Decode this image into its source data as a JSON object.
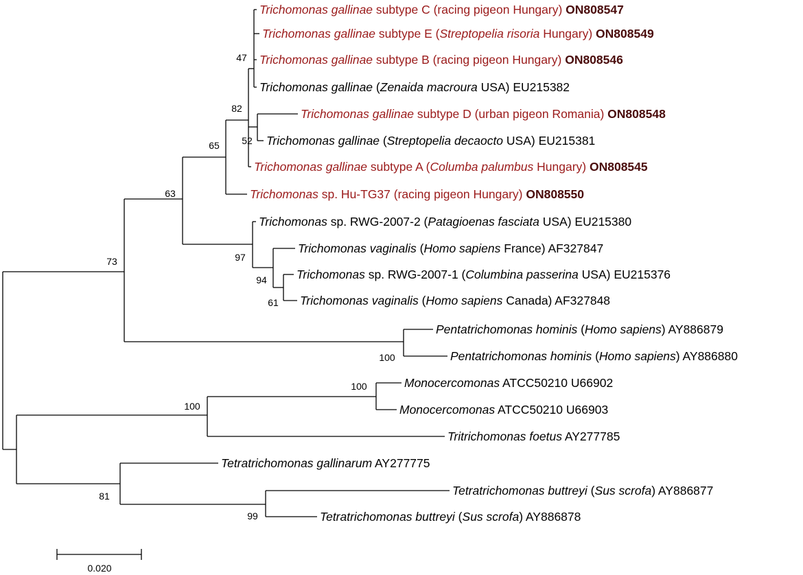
{
  "leaves": [
    {
      "parts": [
        "Trichomonas gallinae",
        " subtype C (racing pigeon Hungary) ",
        "ON808547"
      ]
    },
    {
      "parts": [
        "Trichomonas gallinae",
        " subtype E (",
        "Streptopelia risoria",
        " Hungary) ",
        "ON808549"
      ]
    },
    {
      "parts": [
        "Trichomonas gallinae",
        " subtype B (racing pigeon Hungary) ",
        "ON808546"
      ]
    },
    {
      "parts": [
        "Trichomonas gallinae",
        " (",
        "Zenaida macroura",
        " USA) EU215382"
      ]
    },
    {
      "parts": [
        "Trichomonas gallinae",
        " subtype D (urban pigeon Romania) ",
        "ON808548"
      ]
    },
    {
      "parts": [
        "Trichomonas gallinae",
        " (",
        "Streptopelia decaocto",
        " USA) EU215381"
      ]
    },
    {
      "parts": [
        "Trichomonas gallinae",
        " subtype A (",
        "Columba palumbus",
        " Hungary) ",
        "ON808545"
      ]
    },
    {
      "parts": [
        "Trichomonas",
        " sp. Hu-TG37 (racing pigeon Hungary) ",
        "ON808550"
      ]
    },
    {
      "parts": [
        "Trichomonas",
        " sp. RWG-2007-2 (",
        "Patagioenas fasciata",
        " USA) EU215380"
      ]
    },
    {
      "parts": [
        "Trichomonas vaginalis",
        " (",
        "Homo sapiens",
        " France) AF327847"
      ]
    },
    {
      "parts": [
        "Trichomonas",
        " sp. RWG-2007-1 (",
        "Columbina passerina",
        " USA) EU215376"
      ]
    },
    {
      "parts": [
        "Trichomonas vaginalis",
        " (",
        "Homo sapiens",
        " Canada) AF327848"
      ]
    },
    {
      "parts": [
        "Pentatrichomonas hominis",
        " (",
        "Homo sapiens",
        ") AY886879"
      ]
    },
    {
      "parts": [
        "Pentatrichomonas hominis",
        " (",
        "Homo sapiens",
        ") AY886880"
      ]
    },
    {
      "parts": [
        "Monocercomonas",
        " ATCC50210 U66902"
      ]
    },
    {
      "parts": [
        "Monocercomonas",
        " ATCC50210 U66903"
      ]
    },
    {
      "parts": [
        "Tritrichomonas foetus",
        " AY277785"
      ]
    },
    {
      "parts": [
        "Tetratrichomonas gallinarum",
        " AY277775"
      ]
    },
    {
      "parts": [
        "Tetratrichomonas buttreyi",
        " (",
        "Sus scrofa",
        ") AY886877"
      ]
    },
    {
      "parts": [
        "Tetratrichomonas buttreyi",
        " (",
        "Sus scrofa",
        ") AY886878"
      ]
    }
  ],
  "bootstrap": [
    "47",
    "82",
    "52",
    "65",
    "63",
    "73",
    "97",
    "94",
    "61",
    "100",
    "100",
    "100",
    "81",
    "99"
  ],
  "scale_bar": "0.020"
}
